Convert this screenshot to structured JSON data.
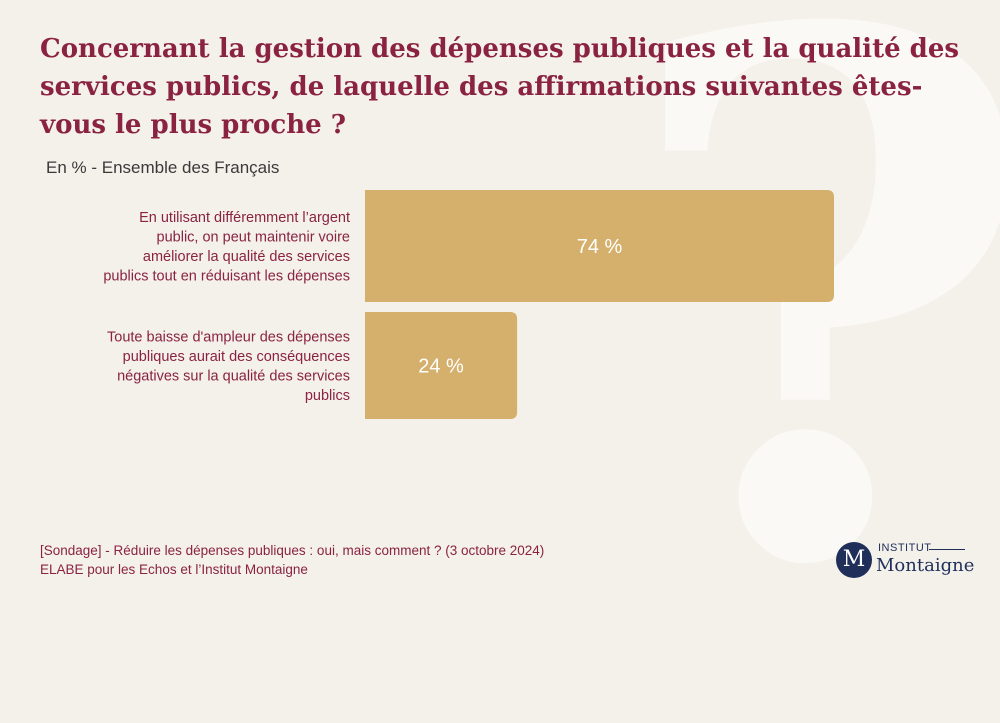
{
  "background_glyph": "?",
  "colors": {
    "title": "#8a2342",
    "bar": "#d4b06c",
    "background": "#f4f0ea",
    "logo": "#1f2f5a"
  },
  "chart_data": {
    "type": "bar",
    "orientation": "horizontal",
    "title": "Concernant la gestion des dépenses publiques et la qualité des services publics, de laquelle des affirmations suivantes êtes-vous le plus proche ?",
    "subtitle": "En % - Ensemble des Français",
    "categories": [
      [
        "En utilisant différemment l’argent",
        "public, on peut maintenir voire",
        "améliorer la qualité des services",
        "publics tout en réduisant les dépenses"
      ],
      [
        "Toute baisse d'ampleur des dépenses",
        "publiques aurait des conséquences",
        "négatives sur la qualité des services",
        "publics"
      ]
    ],
    "values": [
      74,
      24
    ],
    "value_labels": [
      "74 %",
      "24 %"
    ],
    "xlim": [
      0,
      100
    ],
    "grid": false,
    "legend": false
  },
  "footer": {
    "source_line1": "[Sondage] - Réduire les dépenses publiques : oui, mais comment ? (3 octobre 2024)",
    "source_line2": "ELABE pour les Echos et l’Institut Montaigne"
  },
  "logo": {
    "initial": "M",
    "top": "INSTITUT",
    "bottom": "Montaigne"
  }
}
